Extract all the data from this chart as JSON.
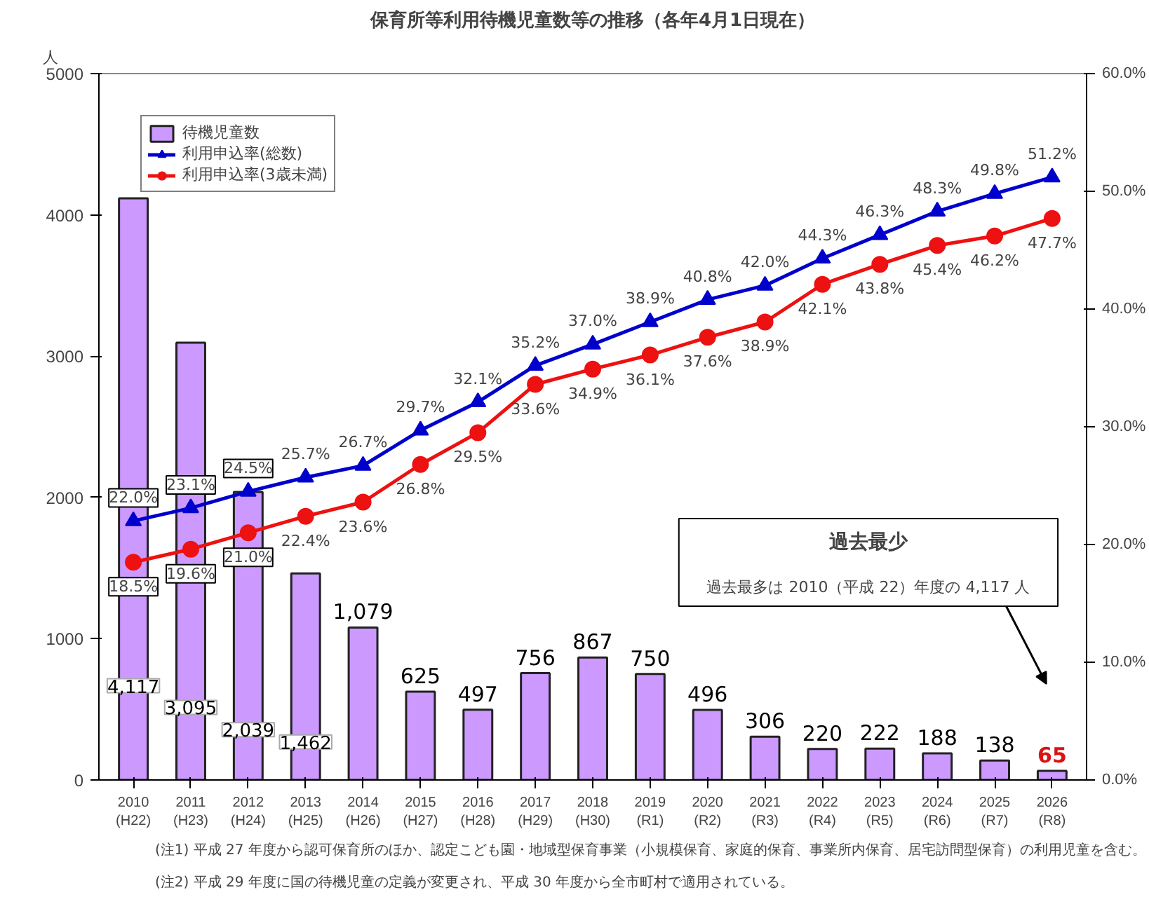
{
  "chart_data": {
    "type": "bar",
    "title": "保育所等利用待機児童数等の推移（各年4月1日現在）",
    "ylabel": "人",
    "categories": [
      "2010\n(H22)",
      "2011\n(H23)",
      "2012\n(H24)",
      "2013\n(H25)",
      "2014\n(H26)",
      "2015\n(H27)",
      "2016\n(H28)",
      "2017\n(H29)",
      "2018\n(H30)",
      "2019\n(R1)",
      "2020\n(R2)",
      "2021\n(R3)",
      "2022\n(R4)",
      "2023\n(R5)",
      "2024\n(R6)",
      "2025\n(R7)",
      "2026\n(R8)"
    ],
    "series": [
      {
        "name": "待機児童数",
        "color": "#cc99ff",
        "values": [
          4117,
          3095,
          2039,
          1462,
          1079,
          625,
          497,
          756,
          867,
          750,
          496,
          306,
          220,
          222,
          188,
          138,
          65
        ],
        "value_labels": [
          "4,117",
          "3,095",
          "2,039",
          "1,462",
          "1,079",
          "625",
          "497",
          "756",
          "867",
          "750",
          "496",
          "306",
          "220",
          "222",
          "188",
          "138",
          "65"
        ]
      },
      {
        "name": "利用申込率(総数)",
        "type": "line",
        "axis": "y2",
        "marker": "triangle",
        "color": "#0000cc",
        "values": [
          22.0,
          23.1,
          24.5,
          25.7,
          26.7,
          29.7,
          32.1,
          35.2,
          37.0,
          38.9,
          40.8,
          42.0,
          44.3,
          46.3,
          48.3,
          49.8,
          51.2
        ],
        "value_labels": [
          "22.0%",
          "23.1%",
          "24.5%",
          "25.7%",
          "26.7%",
          "29.7%",
          "32.1%",
          "35.2%",
          "37.0%",
          "38.9%",
          "40.8%",
          "42.0%",
          "44.3%",
          "46.3%",
          "48.3%",
          "49.8%",
          "51.2%"
        ]
      },
      {
        "name": "利用申込率(3歳未満)",
        "type": "line",
        "axis": "y2",
        "marker": "circle",
        "color": "#ee1111",
        "values": [
          18.5,
          19.6,
          21.0,
          22.4,
          23.6,
          26.8,
          29.5,
          33.6,
          34.9,
          36.1,
          37.6,
          38.9,
          42.1,
          43.8,
          45.4,
          46.2,
          47.7
        ],
        "value_labels": [
          "18.5%",
          "19.6%",
          "21.0%",
          "22.4%",
          "23.6%",
          "26.8%",
          "29.5%",
          "33.6%",
          "34.9%",
          "36.1%",
          "37.6%",
          "38.9%",
          "42.1%",
          "43.8%",
          "45.4%",
          "46.2%",
          "47.7%"
        ]
      }
    ],
    "ylim": [
      0,
      5000
    ],
    "yticks": [
      0,
      1000,
      2000,
      3000,
      4000,
      5000
    ],
    "y2lim": [
      0,
      60
    ],
    "y2ticks": [
      {
        "value": 0,
        "label": "0.0%"
      },
      {
        "value": 10,
        "label": "10.0%"
      },
      {
        "value": 20,
        "label": "20.0%"
      },
      {
        "value": 30,
        "label": "30.0%"
      },
      {
        "value": 40,
        "label": "40.0%"
      },
      {
        "value": 50,
        "label": "50.0%"
      },
      {
        "value": 60,
        "label": "60.0%"
      }
    ],
    "legend": "top left",
    "grid": false,
    "annotations": [
      "過去最少",
      "過去最多は 2010（平成 22）年度の 4,117 人",
      "(注1) 平成 27 年度から認可保育所のほか、認定こども園・地域型保育事業（小規模保育、家庭的保育、事業所内保育、居宅訪問型保育）の利用児童を含む。",
      "(注2) 平成 29 年度に国の待機児童の定義が変更され、平成 30 年度から全市町村で適用されている。"
    ]
  }
}
